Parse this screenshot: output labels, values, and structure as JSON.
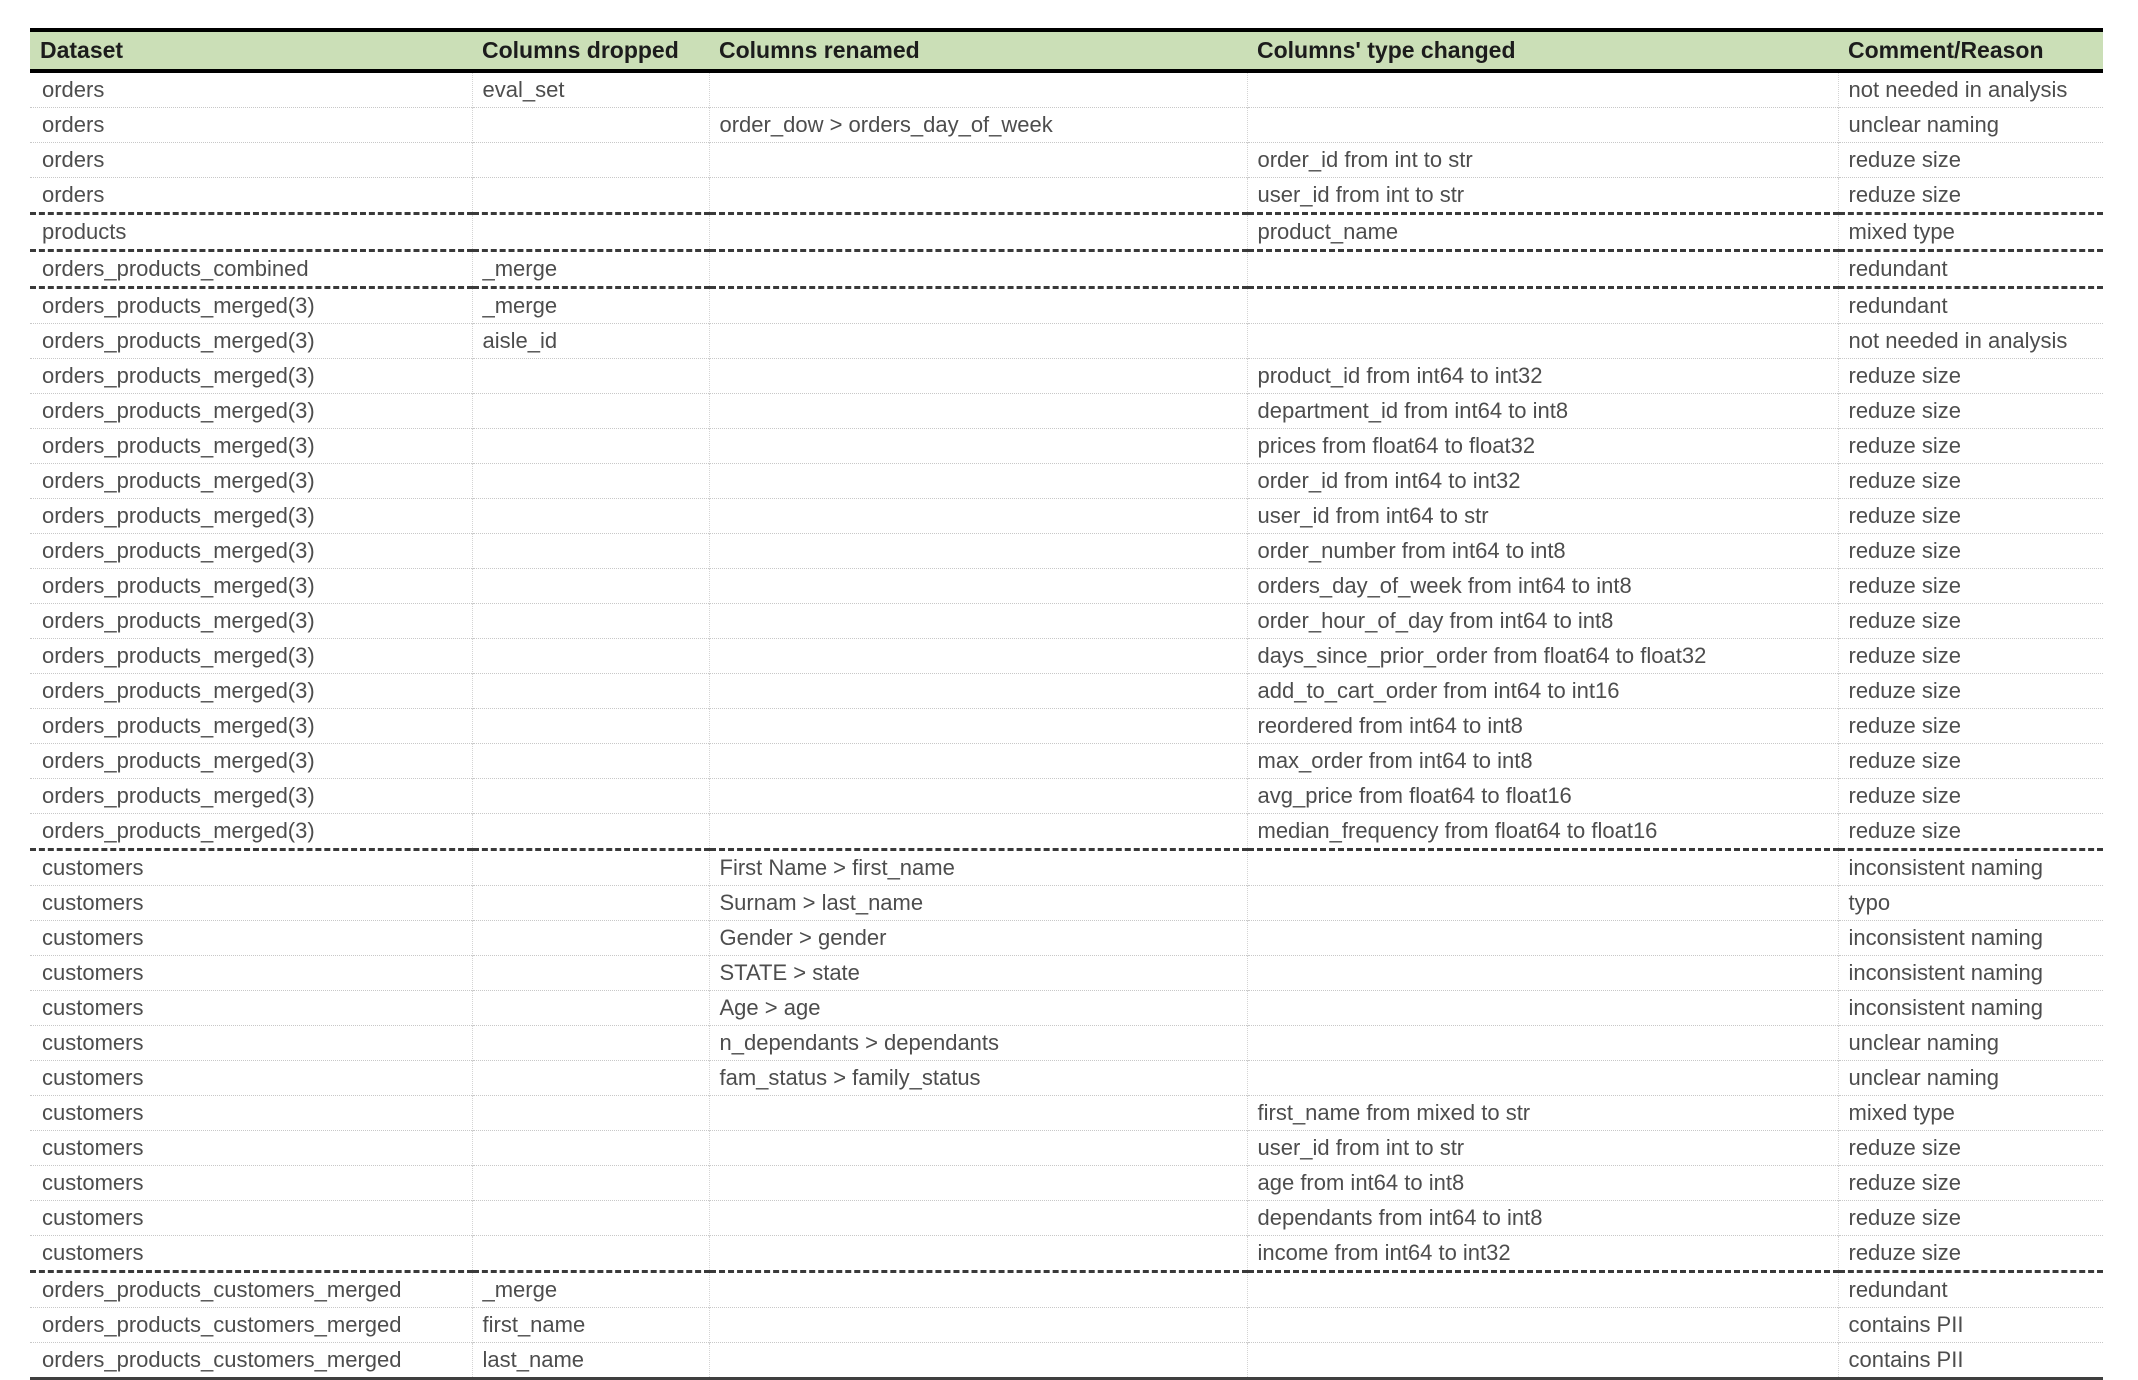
{
  "table": {
    "columns": [
      "Dataset",
      "Columns dropped",
      "Columns renamed",
      "Columns' type changed",
      "Comment/Reason"
    ],
    "column_keys": [
      "dataset",
      "dropped",
      "renamed",
      "type_changed",
      "comment"
    ],
    "colors": {
      "header_bg": "#cbdfb7",
      "header_text": "#1c1c1c",
      "body_text": "#4d4d4d",
      "frame_border": "#000000",
      "bottom_border": "#3f3f3f",
      "row_divider": "#c8c8c8",
      "group_divider": "#3a3a3a"
    },
    "rows": [
      {
        "dataset": "orders",
        "dropped": "eval_set",
        "renamed": "",
        "type_changed": "",
        "comment": "not needed in analysis",
        "group_start": false
      },
      {
        "dataset": "orders",
        "dropped": "",
        "renamed": "order_dow > orders_day_of_week",
        "type_changed": "",
        "comment": "unclear naming",
        "group_start": false
      },
      {
        "dataset": "orders",
        "dropped": "",
        "renamed": "",
        "type_changed": "order_id from int to str",
        "comment": "reduze size",
        "group_start": false
      },
      {
        "dataset": "orders",
        "dropped": "",
        "renamed": "",
        "type_changed": "user_id from int to str",
        "comment": "reduze size",
        "group_start": false
      },
      {
        "dataset": "products",
        "dropped": "",
        "renamed": "",
        "type_changed": "product_name",
        "comment": "mixed type",
        "group_start": true
      },
      {
        "dataset": "orders_products_combined",
        "dropped": "_merge",
        "renamed": "",
        "type_changed": "",
        "comment": "redundant",
        "group_start": true
      },
      {
        "dataset": "orders_products_merged(3)",
        "dropped": "_merge",
        "renamed": "",
        "type_changed": "",
        "comment": "redundant",
        "group_start": true
      },
      {
        "dataset": "orders_products_merged(3)",
        "dropped": "aisle_id",
        "renamed": "",
        "type_changed": "",
        "comment": "not needed in analysis",
        "group_start": false
      },
      {
        "dataset": "orders_products_merged(3)",
        "dropped": "",
        "renamed": "",
        "type_changed": "product_id from int64 to int32",
        "comment": "reduze size",
        "group_start": false
      },
      {
        "dataset": "orders_products_merged(3)",
        "dropped": "",
        "renamed": "",
        "type_changed": "department_id from int64 to int8",
        "comment": "reduze size",
        "group_start": false
      },
      {
        "dataset": "orders_products_merged(3)",
        "dropped": "",
        "renamed": "",
        "type_changed": "prices from float64 to float32",
        "comment": "reduze size",
        "group_start": false
      },
      {
        "dataset": "orders_products_merged(3)",
        "dropped": "",
        "renamed": "",
        "type_changed": "order_id from int64 to int32",
        "comment": "reduze size",
        "group_start": false
      },
      {
        "dataset": "orders_products_merged(3)",
        "dropped": "",
        "renamed": "",
        "type_changed": "user_id from int64 to str",
        "comment": "reduze size",
        "group_start": false
      },
      {
        "dataset": "orders_products_merged(3)",
        "dropped": "",
        "renamed": "",
        "type_changed": "order_number from int64 to int8",
        "comment": "reduze size",
        "group_start": false
      },
      {
        "dataset": "orders_products_merged(3)",
        "dropped": "",
        "renamed": "",
        "type_changed": "orders_day_of_week from int64 to int8",
        "comment": "reduze size",
        "group_start": false
      },
      {
        "dataset": "orders_products_merged(3)",
        "dropped": "",
        "renamed": "",
        "type_changed": "order_hour_of_day from int64 to int8",
        "comment": "reduze size",
        "group_start": false
      },
      {
        "dataset": "orders_products_merged(3)",
        "dropped": "",
        "renamed": "",
        "type_changed": "days_since_prior_order from float64 to float32",
        "comment": "reduze size",
        "group_start": false
      },
      {
        "dataset": "orders_products_merged(3)",
        "dropped": "",
        "renamed": "",
        "type_changed": "add_to_cart_order from int64 to int16",
        "comment": "reduze size",
        "group_start": false
      },
      {
        "dataset": "orders_products_merged(3)",
        "dropped": "",
        "renamed": "",
        "type_changed": "reordered from int64 to int8",
        "comment": "reduze size",
        "group_start": false
      },
      {
        "dataset": "orders_products_merged(3)",
        "dropped": "",
        "renamed": "",
        "type_changed": "max_order from int64 to int8",
        "comment": "reduze size",
        "group_start": false
      },
      {
        "dataset": "orders_products_merged(3)",
        "dropped": "",
        "renamed": "",
        "type_changed": "avg_price from float64 to float16",
        "comment": "reduze size",
        "group_start": false
      },
      {
        "dataset": "orders_products_merged(3)",
        "dropped": "",
        "renamed": "",
        "type_changed": "median_frequency from float64 to float16",
        "comment": "reduze size",
        "group_start": false
      },
      {
        "dataset": "customers",
        "dropped": "",
        "renamed": "First Name > first_name",
        "type_changed": "",
        "comment": "inconsistent naming",
        "group_start": true
      },
      {
        "dataset": "customers",
        "dropped": "",
        "renamed": "Surnam > last_name",
        "type_changed": "",
        "comment": "typo",
        "group_start": false
      },
      {
        "dataset": "customers",
        "dropped": "",
        "renamed": "Gender > gender",
        "type_changed": "",
        "comment": "inconsistent naming",
        "group_start": false
      },
      {
        "dataset": "customers",
        "dropped": "",
        "renamed": "STATE > state",
        "type_changed": "",
        "comment": "inconsistent naming",
        "group_start": false
      },
      {
        "dataset": "customers",
        "dropped": "",
        "renamed": "Age > age",
        "type_changed": "",
        "comment": "inconsistent naming",
        "group_start": false
      },
      {
        "dataset": "customers",
        "dropped": "",
        "renamed": "n_dependants > dependants",
        "type_changed": "",
        "comment": "unclear naming",
        "group_start": false
      },
      {
        "dataset": "customers",
        "dropped": "",
        "renamed": "fam_status > family_status",
        "type_changed": "",
        "comment": "unclear naming",
        "group_start": false
      },
      {
        "dataset": "customers",
        "dropped": "",
        "renamed": "",
        "type_changed": "first_name from mixed to str",
        "comment": "mixed type",
        "group_start": false
      },
      {
        "dataset": "customers",
        "dropped": "",
        "renamed": "",
        "type_changed": "user_id from int to str",
        "comment": "reduze size",
        "group_start": false
      },
      {
        "dataset": "customers",
        "dropped": "",
        "renamed": "",
        "type_changed": "age from int64 to int8",
        "comment": "reduze size",
        "group_start": false
      },
      {
        "dataset": "customers",
        "dropped": "",
        "renamed": "",
        "type_changed": "dependants from int64 to int8",
        "comment": "reduze size",
        "group_start": false
      },
      {
        "dataset": "customers",
        "dropped": "",
        "renamed": "",
        "type_changed": "income from int64 to int32",
        "comment": "reduze size",
        "group_start": false
      },
      {
        "dataset": "orders_products_customers_merged",
        "dropped": "_merge",
        "renamed": "",
        "type_changed": "",
        "comment": "redundant",
        "group_start": true
      },
      {
        "dataset": "orders_products_customers_merged",
        "dropped": "first_name",
        "renamed": "",
        "type_changed": "",
        "comment": "contains PII",
        "group_start": false
      },
      {
        "dataset": "orders_products_customers_merged",
        "dropped": "last_name",
        "renamed": "",
        "type_changed": "",
        "comment": "contains PII",
        "group_start": false
      }
    ]
  }
}
